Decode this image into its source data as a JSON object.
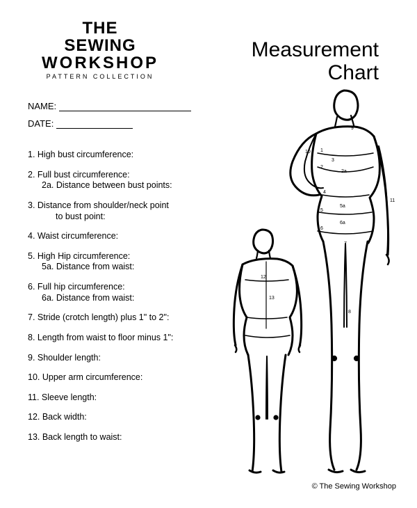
{
  "logo": {
    "line1": "THE",
    "line2": "SEWING",
    "line3": "WORKSHOP",
    "collection": "PATTERN COLLECTION"
  },
  "title": {
    "line1": "Measurement",
    "line2": "Chart"
  },
  "fields": {
    "name_label": "NAME:",
    "date_label": "DATE:",
    "name_line_width": 190,
    "date_line_width": 110
  },
  "measurements": [
    {
      "num": "1.",
      "text": "High bust circumference:"
    },
    {
      "num": "2.",
      "text": "Full bust circumference:",
      "sub": {
        "num": "2a.",
        "text": "Distance between bust points:"
      }
    },
    {
      "num": "3.",
      "text": "Distance from shoulder/neck point",
      "cont": "to bust point:"
    },
    {
      "num": "4.",
      "text": "Waist circumference:"
    },
    {
      "num": "5.",
      "text": "High Hip circumference:",
      "sub": {
        "num": "5a.",
        "text": "Distance from waist:"
      }
    },
    {
      "num": "6.",
      "text": "Full hip circumference:",
      "sub": {
        "num": "6a.",
        "text": "Distance from waist:"
      }
    },
    {
      "num": "7.",
      "text": "Stride (crotch length) plus 1\" to 2\":"
    },
    {
      "num": "8.",
      "text": "Length from waist to floor minus 1\":"
    },
    {
      "num": "9.",
      "text": "Shoulder length:"
    },
    {
      "num": "10.",
      "text": "Upper arm circumference:"
    },
    {
      "num": "11.",
      "text": "Sleeve length:"
    },
    {
      "num": "12.",
      "text": "Back width:"
    },
    {
      "num": "13.",
      "text": "Back length to waist:"
    }
  ],
  "figure_labels": [
    "1",
    "2",
    "3",
    "4",
    "5",
    "6",
    "7",
    "8",
    "9",
    "10",
    "11",
    "12",
    "13",
    "2a",
    "5a",
    "6a"
  ],
  "copyright": "© The Sewing Workshop",
  "colors": {
    "ink": "#000000",
    "paper": "#ffffff"
  }
}
